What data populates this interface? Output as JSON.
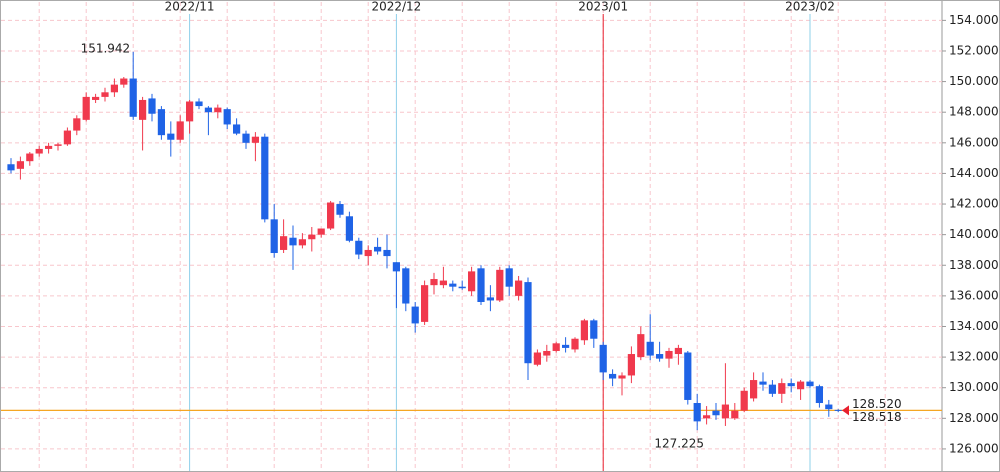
{
  "chart_data": {
    "type": "candlestick",
    "categories": [
      null,
      null,
      null,
      null,
      null,
      null,
      null,
      null,
      null,
      null,
      null,
      null,
      null,
      null,
      null,
      null,
      null,
      null,
      null,
      "2022/11",
      null,
      null,
      null,
      null,
      null,
      null,
      null,
      null,
      null,
      null,
      null,
      null,
      null,
      null,
      null,
      null,
      null,
      null,
      null,
      null,
      null,
      "2022/12",
      null,
      null,
      null,
      null,
      null,
      null,
      null,
      null,
      null,
      null,
      null,
      null,
      null,
      null,
      null,
      null,
      null,
      null,
      null,
      null,
      null,
      "2023/01",
      null,
      null,
      null,
      null,
      null,
      null,
      null,
      null,
      null,
      null,
      null,
      null,
      null,
      null,
      null,
      null,
      null,
      null,
      null,
      null,
      null,
      "2023/02",
      null,
      null,
      null
    ],
    "open": [
      144.6,
      144.3,
      144.8,
      145.3,
      145.6,
      145.8,
      145.9,
      146.8,
      147.5,
      148.8,
      149.0,
      149.3,
      149.8,
      150.2,
      147.5,
      148.9,
      148.2,
      146.6,
      146.2,
      147.4,
      148.7,
      148.3,
      148.0,
      148.2,
      147.2,
      146.6,
      146.0,
      146.4,
      141.0,
      139.0,
      139.8,
      139.3,
      139.7,
      140.0,
      140.4,
      142.0,
      141.2,
      139.6,
      138.6,
      139.2,
      139.0,
      138.2,
      137.8,
      135.3,
      134.3,
      136.7,
      136.7,
      136.8,
      136.6,
      136.3,
      137.8,
      135.9,
      135.7,
      137.8,
      136.0,
      136.9,
      131.5,
      132.1,
      132.4,
      132.8,
      132.5,
      133.1,
      134.4,
      132.8,
      130.9,
      130.6,
      130.8,
      132.0,
      133.0,
      132.2,
      131.9,
      132.2,
      132.3,
      129.0,
      128.0,
      128.5,
      128.0,
      128.0,
      128.5,
      129.3,
      130.4,
      130.2,
      129.6,
      130.3,
      129.9,
      130.4,
      130.1,
      128.9,
      128.55
    ],
    "high": [
      145.0,
      145.1,
      145.4,
      145.8,
      146.0,
      146.0,
      147.0,
      147.8,
      149.3,
      149.2,
      149.6,
      150.2,
      150.3,
      151.942,
      149.0,
      149.2,
      148.4,
      147.4,
      147.8,
      148.8,
      148.9,
      148.4,
      148.5,
      148.3,
      147.6,
      146.8,
      146.7,
      146.6,
      142.0,
      141.0,
      140.6,
      140.1,
      140.5,
      140.4,
      142.2,
      142.2,
      141.5,
      139.8,
      139.3,
      139.8,
      140.0,
      138.2,
      137.9,
      135.6,
      137.0,
      137.5,
      137.9,
      137.0,
      137.0,
      137.9,
      138.0,
      136.7,
      137.9,
      138.0,
      137.3,
      137.2,
      132.5,
      132.8,
      133.0,
      133.3,
      133.3,
      134.5,
      134.5,
      133.0,
      131.2,
      131.0,
      132.7,
      134.0,
      134.8,
      133.0,
      132.6,
      132.8,
      132.4,
      129.6,
      128.8,
      129.0,
      131.6,
      129.0,
      130.0,
      131.0,
      131.0,
      130.5,
      130.6,
      130.6,
      130.5,
      130.5,
      130.2,
      129.2,
      128.6
    ],
    "low": [
      144.0,
      143.6,
      144.5,
      145.1,
      145.3,
      145.5,
      145.8,
      146.5,
      147.4,
      148.6,
      148.7,
      149.0,
      149.6,
      147.5,
      145.5,
      147.4,
      146.2,
      145.1,
      146.0,
      146.6,
      148.2,
      146.5,
      147.6,
      146.9,
      146.5,
      145.6,
      144.8,
      140.8,
      138.5,
      138.8,
      137.7,
      139.1,
      138.9,
      139.8,
      140.3,
      141.1,
      139.5,
      138.4,
      138.0,
      138.7,
      137.8,
      135.2,
      135.0,
      133.6,
      134.1,
      136.1,
      136.5,
      136.3,
      136.4,
      136.0,
      135.4,
      135.0,
      135.6,
      136.0,
      135.7,
      130.5,
      131.4,
      131.7,
      132.3,
      132.3,
      132.3,
      132.8,
      132.6,
      130.5,
      130.1,
      129.5,
      130.3,
      131.8,
      131.8,
      131.7,
      131.3,
      131.5,
      128.9,
      127.225,
      127.6,
      127.9,
      127.5,
      127.9,
      128.4,
      129.1,
      129.8,
      129.4,
      129.0,
      129.7,
      129.2,
      130.0,
      128.7,
      128.1,
      128.4
    ],
    "close": [
      144.2,
      144.8,
      145.3,
      145.6,
      145.8,
      145.9,
      146.8,
      147.6,
      149.0,
      149.0,
      149.3,
      149.8,
      150.2,
      147.7,
      148.8,
      147.9,
      146.5,
      146.2,
      147.4,
      148.7,
      148.4,
      148.0,
      148.3,
      147.2,
      146.6,
      146.0,
      146.4,
      141.0,
      138.8,
      139.9,
      139.3,
      139.7,
      140.0,
      140.4,
      142.1,
      141.3,
      139.6,
      138.7,
      139.0,
      138.9,
      138.6,
      137.6,
      135.5,
      134.2,
      136.7,
      137.1,
      137.0,
      136.6,
      136.5,
      137.6,
      135.6,
      135.7,
      137.7,
      136.6,
      137.0,
      131.6,
      132.3,
      132.4,
      132.9,
      132.6,
      133.2,
      134.4,
      133.2,
      131.0,
      130.6,
      130.8,
      132.2,
      133.5,
      132.1,
      131.9,
      132.4,
      132.6,
      129.2,
      127.8,
      128.2,
      128.2,
      128.9,
      128.5,
      129.8,
      130.5,
      130.2,
      129.6,
      130.3,
      130.1,
      130.4,
      130.1,
      129.0,
      128.6,
      128.518
    ],
    "up_color": "#f0394d",
    "down_color": "#1f63e6",
    "ylim": [
      124.95,
      155.2
    ],
    "yticks": [
      {
        "value": 126,
        "label": "126.000"
      },
      {
        "value": 128,
        "label": "128.000"
      },
      {
        "value": 130,
        "label": "130.000"
      },
      {
        "value": 132,
        "label": "132.000"
      },
      {
        "value": 134,
        "label": "134.000"
      },
      {
        "value": 136,
        "label": "136.000"
      },
      {
        "value": 138,
        "label": "138.000"
      },
      {
        "value": 140,
        "label": "140.000"
      },
      {
        "value": 142,
        "label": "142.000"
      },
      {
        "value": 144,
        "label": "144.000"
      },
      {
        "value": 146,
        "label": "146.000"
      },
      {
        "value": 148,
        "label": "148.000"
      },
      {
        "value": 150,
        "label": "150.000"
      },
      {
        "value": 152,
        "label": "152.000"
      },
      {
        "value": 154,
        "label": "154.000"
      }
    ],
    "grid": true,
    "high_label": {
      "value": 151.942,
      "label": "151.942"
    },
    "low_label": {
      "value": 127.225,
      "label": "127.225"
    },
    "ask": {
      "value": 128.52,
      "label": "128.520",
      "color": "#e8202f"
    },
    "bid": {
      "value": 128.518,
      "label": "128.518",
      "color": "#1f63e6"
    },
    "price_line_color": "#f5a623"
  }
}
